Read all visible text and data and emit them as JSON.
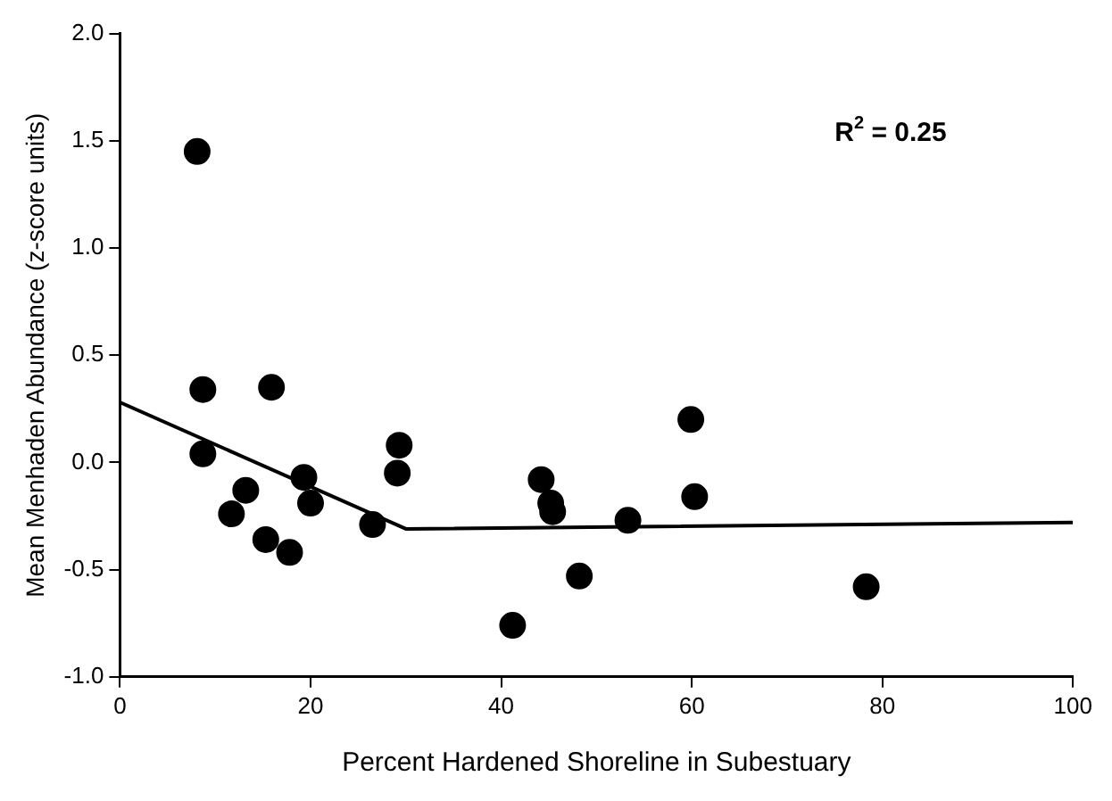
{
  "chart_data": {
    "type": "scatter",
    "xlabel": "Percent Hardened Shoreline in Subestuary",
    "ylabel": "Mean Menhaden Abundance (z-score units)",
    "xlim": [
      0,
      100
    ],
    "xticks": [
      0,
      20,
      40,
      60,
      80,
      100
    ],
    "ylim": [
      -1,
      2
    ],
    "yticks": [
      {
        "value": -1,
        "label": "-1.0"
      },
      -0.5,
      {
        "value": 0,
        "label": "0.0"
      },
      0.5,
      {
        "value": 1,
        "label": "1.0"
      },
      1.5,
      {
        "value": 2,
        "label": "2.0"
      }
    ],
    "grid": false,
    "legend": false,
    "marker": "circle",
    "annotations": [
      "R$^{2}$ = 0.25"
    ],
    "series": [
      {
        "color": "#000000",
        "x": [
          8.1,
          8.7,
          8.7,
          15.9,
          11.7,
          13.2,
          15.3,
          17.8,
          19.3,
          20.0,
          26.5,
          29.3,
          29.1,
          44.2,
          45.2,
          45.4,
          41.2,
          48.2,
          53.3,
          59.9,
          60.3,
          78.3
        ],
        "values": [
          1.45,
          0.34,
          0.04,
          0.35,
          -0.24,
          -0.13,
          -0.36,
          -0.42,
          -0.07,
          -0.19,
          -0.29,
          0.08,
          -0.05,
          -0.08,
          -0.19,
          -0.23,
          -0.76,
          -0.53,
          -0.27,
          0.2,
          -0.16,
          -0.58
        ]
      },
      {
        "type": "line",
        "color": "#000000",
        "marker": "none",
        "x": [
          0,
          30,
          100
        ],
        "values": [
          0.28,
          -0.31,
          -0.28
        ]
      }
    ]
  }
}
